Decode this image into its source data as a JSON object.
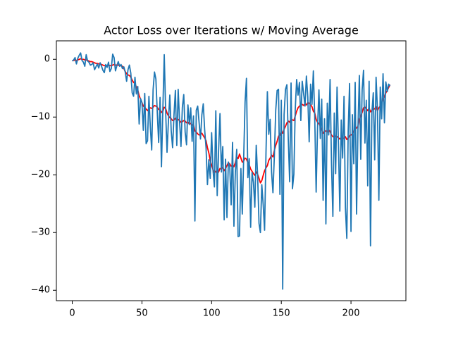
{
  "chart_data": {
    "type": "line",
    "title": "Actor Loss over Iterations w/ Moving Average",
    "x": [
      0,
      1,
      2,
      3,
      4,
      5,
      6,
      7,
      8,
      9,
      10,
      11,
      12,
      13,
      14,
      15,
      16,
      17,
      18,
      19,
      20,
      21,
      22,
      23,
      24,
      25,
      26,
      27,
      28,
      29,
      30,
      31,
      32,
      33,
      34,
      35,
      36,
      37,
      38,
      39,
      40,
      41,
      42,
      43,
      44,
      45,
      46,
      47,
      48,
      49,
      50,
      51,
      52,
      53,
      54,
      55,
      56,
      57,
      58,
      59,
      60,
      61,
      62,
      63,
      64,
      65,
      66,
      67,
      68,
      69,
      70,
      71,
      72,
      73,
      74,
      75,
      76,
      77,
      78,
      79,
      80,
      81,
      82,
      83,
      84,
      85,
      86,
      87,
      88,
      89,
      90,
      91,
      92,
      93,
      94,
      95,
      96,
      97,
      98,
      99,
      100,
      101,
      102,
      103,
      104,
      105,
      106,
      107,
      108,
      109,
      110,
      111,
      112,
      113,
      114,
      115,
      116,
      117,
      118,
      119,
      120,
      121,
      122,
      123,
      124,
      125,
      126,
      127,
      128,
      129,
      130,
      131,
      132,
      133,
      134,
      135,
      136,
      137,
      138,
      139,
      140,
      141,
      142,
      143,
      144,
      145,
      146,
      147,
      148,
      149,
      150,
      151,
      152,
      153,
      154,
      155,
      156,
      157,
      158,
      159,
      160,
      161,
      162,
      163,
      164,
      165,
      166,
      167,
      168,
      169,
      170,
      171,
      172,
      173,
      174,
      175,
      176,
      177,
      178,
      179,
      180,
      181,
      182,
      183,
      184,
      185,
      186,
      187,
      188,
      189,
      190,
      191,
      192,
      193,
      194,
      195,
      196,
      197,
      198,
      199,
      200,
      201,
      202,
      203,
      204,
      205,
      206,
      207,
      208,
      209,
      210,
      211,
      212,
      213,
      214,
      215,
      216,
      217,
      218,
      219,
      220,
      221,
      222,
      223,
      224,
      225,
      226,
      227,
      228
    ],
    "series": [
      {
        "color": "#ff0000",
        "values": [
          -0.2,
          -0.2,
          -0.1,
          -0.2,
          -0.1,
          0.0,
          0.1,
          0.0,
          0.0,
          -0.1,
          -0.1,
          -0.2,
          -0.3,
          -0.4,
          -0.4,
          -0.5,
          -0.6,
          -0.7,
          -0.7,
          -0.8,
          -0.8,
          -0.9,
          -1.0,
          -1.1,
          -1.1,
          -1.1,
          -1.0,
          -1.1,
          -1.1,
          -1.0,
          -0.9,
          -1.0,
          -1.0,
          -1.0,
          -1.1,
          -1.1,
          -1.2,
          -1.6,
          -2.1,
          -2.5,
          -2.7,
          -2.8,
          -3.1,
          -3.6,
          -4.0,
          -4.2,
          -4.8,
          -5.3,
          -6.3,
          -6.9,
          -7.5,
          -8.1,
          -8.3,
          -8.6,
          -8.9,
          -8.6,
          -8.4,
          -8.5,
          -8.3,
          -8.0,
          -8.1,
          -8.3,
          -8.7,
          -8.6,
          -9.2,
          -9.0,
          -8.3,
          -8.5,
          -9.3,
          -9.8,
          -10.1,
          -10.3,
          -10.6,
          -10.5,
          -10.2,
          -10.7,
          -10.4,
          -10.6,
          -10.9,
          -10.8,
          -10.6,
          -10.7,
          -11.0,
          -10.9,
          -11.2,
          -11.1,
          -11.4,
          -11.3,
          -12.4,
          -12.6,
          -12.9,
          -13.1,
          -13.0,
          -12.8,
          -13.2,
          -13.6,
          -14.1,
          -15.3,
          -16.2,
          -17.5,
          -18.3,
          -19.1,
          -19.6,
          -19.4,
          -19.8,
          -19.5,
          -18.9,
          -19.0,
          -18.7,
          -19.3,
          -18.9,
          -18.4,
          -17.9,
          -18.1,
          -18.5,
          -18.2,
          -18.6,
          -17.9,
          -16.9,
          -17.2,
          -16.4,
          -17.1,
          -17.8,
          -17.6,
          -17.1,
          -17.3,
          -17.9,
          -18.3,
          -19.0,
          -19.4,
          -19.8,
          -20.1,
          -19.5,
          -19.9,
          -20.6,
          -21.4,
          -21.0,
          -20.1,
          -19.3,
          -18.8,
          -18.4,
          -17.5,
          -17.1,
          -16.6,
          -16.9,
          -15.8,
          -14.9,
          -14.2,
          -13.3,
          -13.1,
          -12.4,
          -12.8,
          -12.1,
          -11.6,
          -11.0,
          -10.7,
          -10.9,
          -10.3,
          -10.5,
          -10.6,
          -9.8,
          -9.0,
          -8.4,
          -8.1,
          -7.9,
          -7.8,
          -8.0,
          -7.7,
          -7.9,
          -7.5,
          -7.6,
          -7.9,
          -8.2,
          -9.0,
          -9.3,
          -10.4,
          -10.9,
          -11.1,
          -11.6,
          -12.2,
          -12.8,
          -12.5,
          -12.4,
          -12.6,
          -12.2,
          -12.5,
          -13.1,
          -13.4,
          -13.5,
          -13.3,
          -13.4,
          -13.6,
          -13.8,
          -13.5,
          -13.6,
          -13.7,
          -13.4,
          -13.9,
          -13.6,
          -13.2,
          -13.1,
          -12.9,
          -12.5,
          -12.1,
          -11.9,
          -11.6,
          -10.4,
          -9.8,
          -9.2,
          -8.4,
          -8.3,
          -8.6,
          -8.9,
          -8.4,
          -9.1,
          -8.8,
          -8.5,
          -8.6,
          -8.2,
          -8.9,
          -8.4,
          -8.1,
          -7.6,
          -6.9,
          -6.5,
          -5.8,
          -5.4,
          -4.9,
          -4.4
        ]
      },
      {
        "color": "#1f77b4",
        "values": [
          -0.3,
          -0.1,
          0.3,
          -0.8,
          0.2,
          0.7,
          1.1,
          -0.2,
          -0.5,
          -1.2,
          0.8,
          -0.3,
          -0.5,
          -1.0,
          -0.9,
          -0.6,
          -1.8,
          -1.3,
          -0.8,
          -1.5,
          -0.6,
          -1.2,
          -1.9,
          -2.3,
          -0.9,
          -1.4,
          -0.5,
          -2.1,
          -1.6,
          0.9,
          0.3,
          -2.0,
          -1.1,
          -0.4,
          -1.2,
          -0.9,
          -1.6,
          -1.3,
          -2.2,
          -3.8,
          -1.8,
          -1.0,
          -2.4,
          -5.8,
          -6.4,
          -3.1,
          -6.0,
          -4.7,
          -11.2,
          -6.8,
          -7.5,
          -12.3,
          -5.9,
          -14.6,
          -14.1,
          -6.4,
          -11.7,
          -15.7,
          -5.3,
          -2.2,
          -3.4,
          -9.2,
          -14.4,
          -6.6,
          -18.6,
          -8.7,
          0.8,
          -8.9,
          -16.1,
          -10.7,
          -6.2,
          -12.4,
          -15.3,
          -9.6,
          -5.4,
          -14.9,
          -5.2,
          -10.8,
          -15.1,
          -8.3,
          -6.1,
          -12.6,
          -14.8,
          -7.9,
          -11.3,
          -8.4,
          -14.2,
          -9.8,
          -28.0,
          -8.8,
          -8.1,
          -10.9,
          -13.8,
          -9.6,
          -7.7,
          -12.2,
          -15.3,
          -21.7,
          -17.4,
          -20.6,
          -12.7,
          -19.2,
          -22.1,
          -8.9,
          -23.6,
          -15.8,
          -9.4,
          -19.5,
          -15.1,
          -27.8,
          -17.3,
          -27.4,
          -17.8,
          -18.6,
          -25.2,
          -14.4,
          -28.9,
          -19.7,
          -15.6,
          -30.7,
          -30.6,
          -18.9,
          -26.8,
          -17.1,
          -7.4,
          -3.3,
          -20.5,
          -17.2,
          -29.1,
          -19.6,
          -21.3,
          -25.6,
          -14.9,
          -20.1,
          -28.4,
          -30.0,
          -21.7,
          -25.2,
          -29.6,
          -16.3,
          -5.6,
          -13.0,
          -10.4,
          -19.5,
          -23.1,
          -16.8,
          -8.8,
          -5.4,
          -5.2,
          -23.4,
          -7.1,
          -39.8,
          -9.6,
          -5.2,
          -4.4,
          -13.8,
          -21.2,
          -4.1,
          -22.4,
          -19.9,
          -8.7,
          -3.5,
          -6.2,
          -4.0,
          -10.6,
          -3.8,
          -5.9,
          -8.1,
          -2.9,
          -6.5,
          -14.3,
          -4.3,
          -7.8,
          -2.0,
          -10.1,
          -23.0,
          -11.8,
          -5.3,
          -13.7,
          -6.9,
          -24.4,
          -10.3,
          -28.5,
          -7.6,
          -13.1,
          -3.5,
          -17.9,
          -27.2,
          -9.3,
          -19.8,
          -4.8,
          -14.7,
          -26.3,
          -10.5,
          -17.1,
          -6.4,
          -25.7,
          -31.0,
          -12.3,
          -4.2,
          -29.8,
          -9.6,
          -18.1,
          -4.0,
          -26.8,
          -12.0,
          -2.8,
          -17.3,
          -5.3,
          -1.9,
          -14.5,
          -7.1,
          -21.9,
          -3.8,
          -32.3,
          -9.2,
          -5.8,
          -17.4,
          -3.1,
          -8.9,
          -24.4,
          -4.8,
          -10.3,
          -2.5,
          -11.0,
          -3.9,
          -5.6,
          -4.3,
          -4.6
        ]
      }
    ],
    "xlim": [
      -11.4,
      239.4
    ],
    "xticks": [
      0,
      50,
      100,
      150,
      200
    ],
    "ylim": [
      -41.8,
      3.2
    ],
    "yticks": [
      {
        "value": 0,
        "label": "0"
      },
      {
        "value": -10,
        "label": "−10"
      },
      {
        "value": -20,
        "label": "−20"
      },
      {
        "value": -30,
        "label": "−30"
      },
      {
        "value": -40,
        "label": "−40"
      }
    ],
    "grid": false
  }
}
